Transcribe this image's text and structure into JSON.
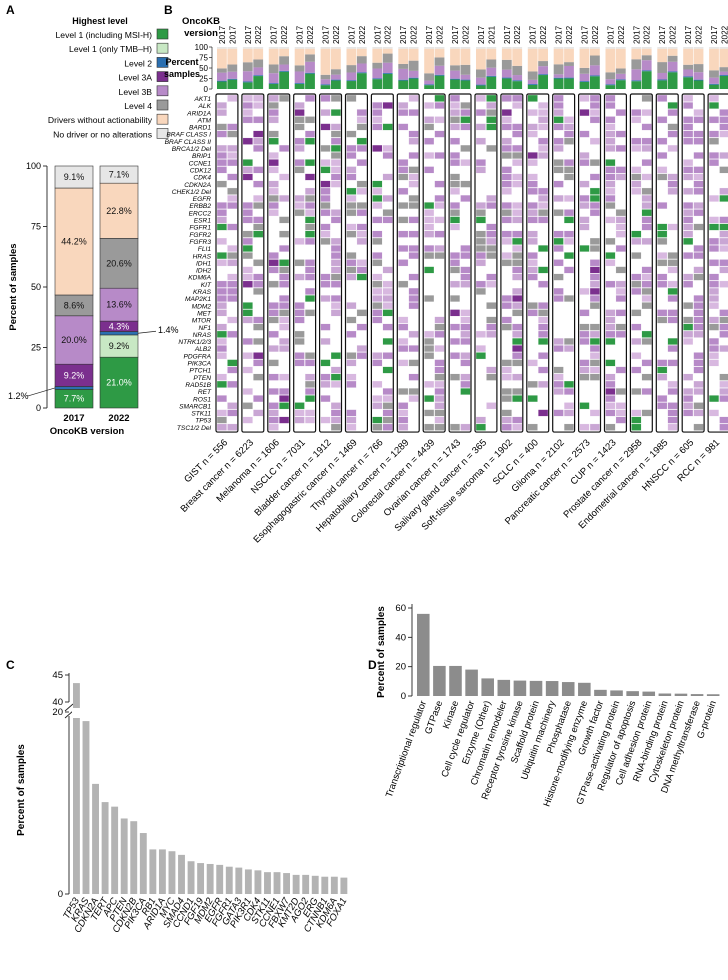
{
  "colors": {
    "level1": "#2e9a45",
    "level1_tmb": "#c8e8c4",
    "level2": "#2b6fb0",
    "level3a": "#7b2f8e",
    "level3b": "#b78ac8",
    "level4": "#9a9a9a",
    "drivers": "#f9d7bd",
    "none": "#e6e6e6",
    "bar": "#8c8c8c"
  },
  "panels": {
    "A": "A",
    "B": "B",
    "C": "C",
    "D": "D"
  },
  "legend": {
    "title": "Highest level",
    "items": [
      {
        "label": "Level 1 (including MSI-H)",
        "color_key": "level1"
      },
      {
        "label": "Level 1 (only TMB–H)",
        "color_key": "level1_tmb"
      },
      {
        "label": "Level 2",
        "color_key": "level2"
      },
      {
        "label": "Level 3A",
        "color_key": "level3a"
      },
      {
        "label": "Level 3B",
        "color_key": "level3b"
      },
      {
        "label": "Level 4",
        "color_key": "level4"
      },
      {
        "label": "Drivers without actionability",
        "color_key": "drivers"
      },
      {
        "label": "No driver or no alterations",
        "color_key": "none"
      }
    ]
  },
  "chart_data": [
    {
      "id": "A",
      "type": "bar",
      "stacked": true,
      "title": "",
      "xlabel": "OncoKB version",
      "ylabel": "Percent of samples",
      "ylim": [
        0,
        100
      ],
      "yticks": [
        "0",
        "25",
        "50",
        "75",
        "100"
      ],
      "categories": [
        "2017",
        "2022"
      ],
      "series": [
        {
          "name": "Level 1 (including MSI-H)",
          "color_key": "level1",
          "values": [
            7.7,
            21.0
          ],
          "labels": [
            "7.7%",
            "21.0%"
          ]
        },
        {
          "name": "Level 1 (only TMB–H)",
          "color_key": "level1_tmb",
          "values": [
            0,
            9.2
          ],
          "labels": [
            "",
            "9.2%"
          ]
        },
        {
          "name": "Level 2",
          "color_key": "level2",
          "values": [
            1.2,
            1.4
          ],
          "labels": [
            "",
            ""
          ]
        },
        {
          "name": "Level 3A",
          "color_key": "level3a",
          "values": [
            9.2,
            4.3
          ],
          "labels": [
            "9.2%",
            "4.3%"
          ]
        },
        {
          "name": "Level 3B",
          "color_key": "level3b",
          "values": [
            20.0,
            13.6
          ],
          "labels": [
            "20.0%",
            "13.6%"
          ]
        },
        {
          "name": "Level 4",
          "color_key": "level4",
          "values": [
            8.6,
            20.6
          ],
          "labels": [
            "8.6%",
            "20.6%"
          ]
        },
        {
          "name": "Drivers without actionability",
          "color_key": "drivers",
          "values": [
            44.2,
            22.8
          ],
          "labels": [
            "44.2%",
            "22.8%"
          ]
        },
        {
          "name": "No driver or no alterations",
          "color_key": "none",
          "values": [
            9.1,
            7.1
          ],
          "labels": [
            "9.1%",
            "7.1%"
          ]
        }
      ],
      "annotations": [
        {
          "text": "1.2%",
          "series": "Level 2",
          "category": "2017"
        },
        {
          "text": "1.4%",
          "series": "Level 2",
          "category": "2022"
        }
      ]
    },
    {
      "id": "B",
      "type": "heatmap",
      "header": "OncoKB version",
      "versions": [
        "2017",
        "2022"
      ],
      "top_bar_ylabel": "Percent samples",
      "top_bar_yticks": [
        "100",
        "75",
        "50",
        "25",
        "0"
      ],
      "genes": [
        "AKT1",
        "ALK",
        "ARID1A",
        "ATM",
        "BARD1",
        "BRAF CLASS I",
        "BRAF CLASS II",
        "BRCA1/2 Del",
        "BRIP1",
        "CCNE1",
        "CDK12",
        "CDK4",
        "CDKN2A",
        "CHEK1/2 Del",
        "EGFR",
        "ERBB2",
        "ERCC2",
        "ESR1",
        "FGFR1",
        "FGFR2",
        "FGFR3",
        "FLI1",
        "HRAS",
        "IDH1",
        "IDH2",
        "KDM6A",
        "KIT",
        "KRAS",
        "MAP2K1",
        "MDM2",
        "MET",
        "MTOR",
        "NF1",
        "NRAS",
        "NTRK1/2/3",
        "ALB2",
        "PDGFRA",
        "PIK3CA",
        "PTCH1",
        "PTEN",
        "RAD51B",
        "RET",
        "ROS1",
        "SMARCB1",
        "STK11",
        "TP53",
        "TSC1/2 Del"
      ],
      "cancers": [
        {
          "label": "GIST n = 556",
          "second": "2017"
        },
        {
          "label": "Breast cancer n = 6223",
          "second": "2022"
        },
        {
          "label": "Melanoma n = 1606",
          "second": "2022"
        },
        {
          "label": "NSCLC n = 7031",
          "second": "2022"
        },
        {
          "label": "Bladder cancer n = 1912",
          "second": "2022"
        },
        {
          "label": "Esophagogastric cancer n = 1469",
          "second": "2022"
        },
        {
          "label": "Thyroid cancer n = 766",
          "second": "2022"
        },
        {
          "label": "Hepatobiliary cancer n = 1289",
          "second": "2022"
        },
        {
          "label": "Colorectal cancer n = 4439",
          "second": "2022"
        },
        {
          "label": "Ovarian cancer n = 1743",
          "second": "2022"
        },
        {
          "label": "Salivary gland cancer n = 365",
          "second": "2021"
        },
        {
          "label": "Soft-tissue sarcoma n = 1902",
          "second": "2022"
        },
        {
          "label": "SCLC n = 400",
          "second": "2022"
        },
        {
          "label": "Glioma n = 2102",
          "second": "2022"
        },
        {
          "label": "Pancreatic cancer n = 2573",
          "second": "2022"
        },
        {
          "label": "CUP n = 1423",
          "second": "2022"
        },
        {
          "label": "Prostate cancer n = 2958",
          "second": "2022"
        },
        {
          "label": "Endometrial cancer n = 1985",
          "second": "2022"
        },
        {
          "label": "HNSCC n = 605",
          "second": "2022"
        },
        {
          "label": "RCC n = 981",
          "second": "2022"
        }
      ]
    },
    {
      "id": "C",
      "type": "bar",
      "title": "",
      "xlabel": "",
      "ylabel": "Percent of samples",
      "yticks": [
        "0",
        "20",
        "40",
        "45"
      ],
      "axis_break": true,
      "ylim": [
        0,
        45
      ],
      "categories": [
        "TP53",
        "KRAS",
        "CDKN2A",
        "TERT",
        "APC",
        "PTEN",
        "CDKN2B",
        "PIK3CA",
        "RB1",
        "ARID1A",
        "MYC",
        "SMAD4",
        "CCND1",
        "FGF19",
        "MDM2",
        "EGFR",
        "FGFR1",
        "GATA3",
        "PIK3R1",
        "CDK4",
        "STK11",
        "CCNE1",
        "FBXW7",
        "KMT2D",
        "AGO2",
        "ERG",
        "CTNNB1",
        "KDM6A",
        "FOXA1"
      ],
      "values": [
        43.5,
        19.0,
        12.1,
        10.1,
        9.6,
        8.3,
        8.0,
        6.7,
        4.9,
        4.9,
        4.7,
        4.3,
        3.6,
        3.4,
        3.3,
        3.2,
        3.0,
        2.9,
        2.7,
        2.6,
        2.4,
        2.4,
        2.3,
        2.1,
        2.1,
        2.0,
        1.9,
        1.9,
        1.8
      ]
    },
    {
      "id": "D",
      "type": "bar",
      "title": "",
      "xlabel": "",
      "ylabel": "Percent of samples",
      "ylim": [
        0,
        60
      ],
      "yticks": [
        "0",
        "20",
        "40",
        "60"
      ],
      "categories": [
        "Transcriptional regulator",
        "GTPase",
        "Kinase",
        "Cell cycle regulator",
        "Enzyme (Other)",
        "Chromatin remodeler",
        "Receptor tyrosine kinase",
        "Scaffold protein",
        "Ubiquitin machinery",
        "Phosphatase",
        "Histone-modifying enzyme",
        "Growth factor",
        "GTPase-activating protein",
        "Regulator of apoptosis",
        "Cell adhesion protein",
        "RNA-binding protein",
        "Cytoskeleton protein",
        "DNA methyltransferase",
        "G-protein"
      ],
      "values": [
        56,
        20.5,
        20.5,
        18,
        12,
        11,
        10.5,
        10.3,
        10.2,
        9.5,
        9,
        4.2,
        3.8,
        3.3,
        3,
        1.7,
        1.6,
        1.3,
        1.2
      ]
    }
  ]
}
